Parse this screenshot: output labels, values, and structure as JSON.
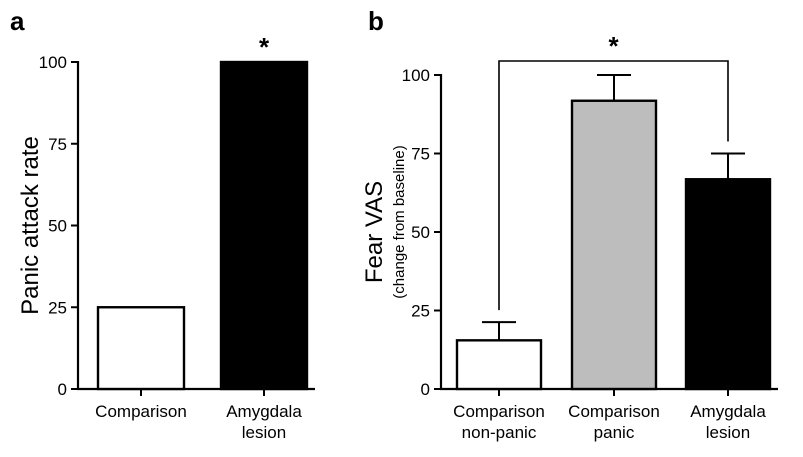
{
  "chart_data": [
    {
      "panel": "a",
      "type": "bar",
      "categories": [
        [
          "Comparison"
        ],
        [
          "Amygdala",
          "lesion"
        ]
      ],
      "values": [
        25,
        100
      ],
      "colors": [
        "#ffffff",
        "#000000"
      ],
      "ylabel": "Panic attack rate",
      "ylim": [
        0,
        100
      ],
      "yticks": [
        "0",
        "25",
        "50",
        "75",
        "100"
      ],
      "significance": [
        {
          "over": 1,
          "label": "*"
        }
      ],
      "grid": false
    },
    {
      "panel": "b",
      "type": "bar",
      "categories": [
        [
          "Comparison",
          "non-panic"
        ],
        [
          "Comparison",
          "panic"
        ],
        [
          "Amygdala",
          "lesion"
        ]
      ],
      "values": [
        15.5,
        91.8,
        66.8
      ],
      "errors": [
        5.8,
        8.2,
        8.2
      ],
      "colors": [
        "#ffffff",
        "#bdbdbd",
        "#000000"
      ],
      "ylabel": "Fear VAS",
      "ylabel_sub": "(change from baseline)",
      "ylim": [
        0,
        100
      ],
      "yticks": [
        "0",
        "25",
        "50",
        "75",
        "100"
      ],
      "significance": [
        {
          "between": [
            0,
            2
          ],
          "label": "*"
        }
      ],
      "grid": false
    }
  ]
}
